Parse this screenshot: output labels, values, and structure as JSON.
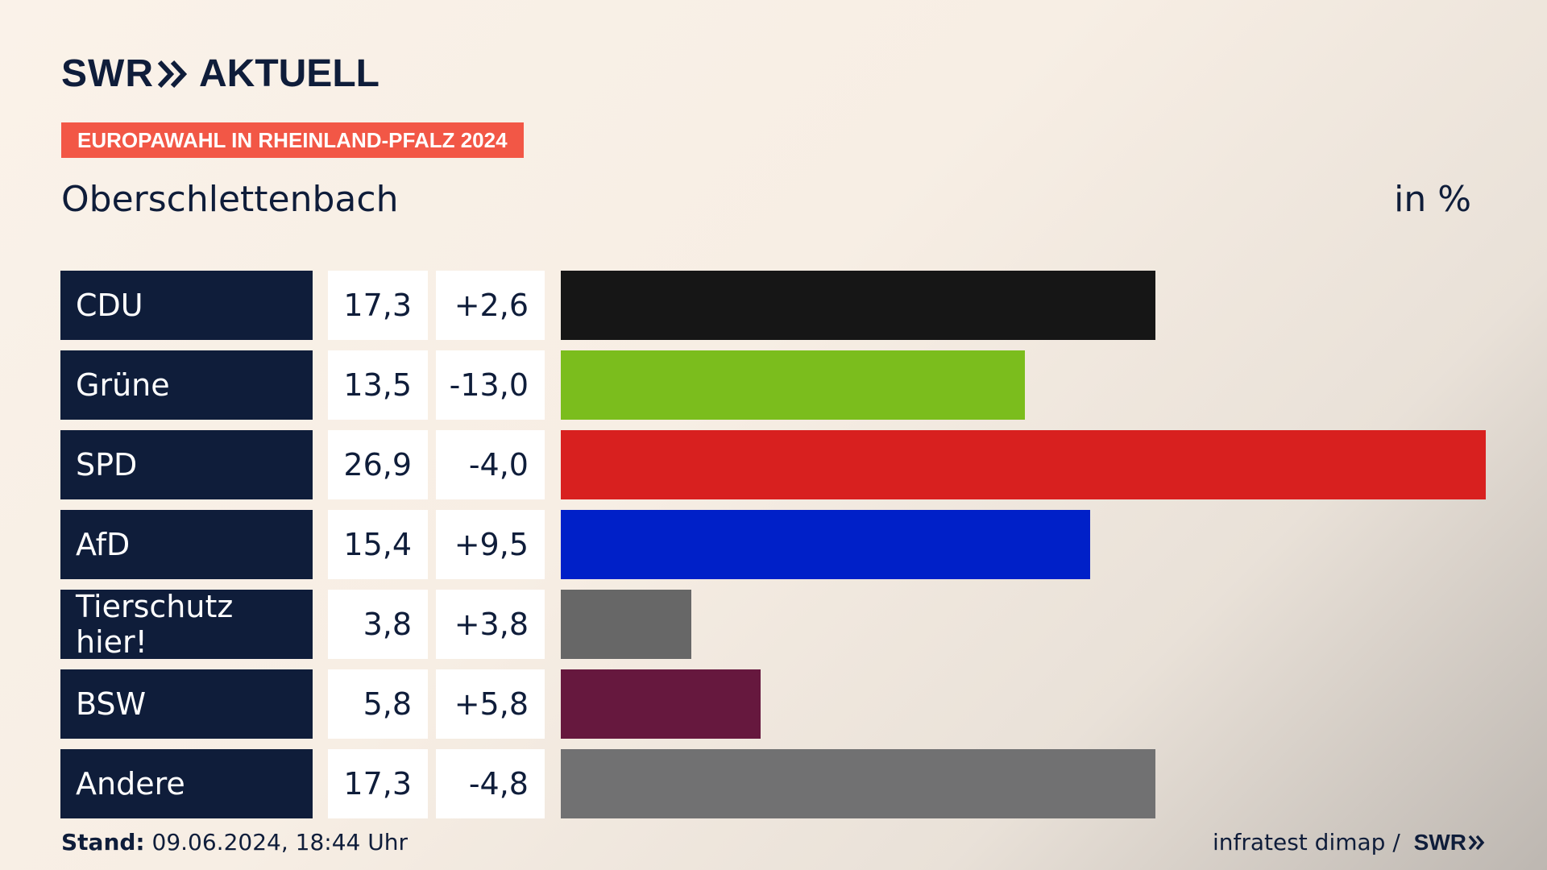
{
  "header": {
    "brand_primary": "SWR",
    "brand_secondary": "AKTUELL",
    "badge": "EUROPAWAHL IN RHEINLAND-PFALZ 2024",
    "place": "Oberschlettenbach",
    "unit": "in %"
  },
  "chart_data": {
    "type": "bar",
    "categories": [
      "CDU",
      "Grüne",
      "SPD",
      "AfD",
      "Tierschutz hier!",
      "BSW",
      "Andere"
    ],
    "values": [
      17.3,
      13.5,
      26.9,
      15.4,
      3.8,
      5.8,
      17.3
    ],
    "rows": [
      {
        "party": "CDU",
        "share": "17,3",
        "diff": "+2,6",
        "value": 17.3,
        "color": "#161616"
      },
      {
        "party": "Grüne",
        "share": "13,5",
        "diff": "-13,0",
        "value": 13.5,
        "color": "#7bbd1d"
      },
      {
        "party": "SPD",
        "share": "26,9",
        "diff": "-4,0",
        "value": 26.9,
        "color": "#d8201f"
      },
      {
        "party": "AfD",
        "share": "15,4",
        "diff": "+9,5",
        "value": 15.4,
        "color": "#0020c8"
      },
      {
        "party": "Tierschutz hier!",
        "share": "3,8",
        "diff": "+3,8",
        "value": 3.8,
        "color": "#676767"
      },
      {
        "party": "BSW",
        "share": "5,8",
        "diff": "+5,8",
        "value": 5.8,
        "color": "#66183e"
      },
      {
        "party": "Andere",
        "share": "17,3",
        "diff": "-4,8",
        "value": 17.3,
        "color": "#717172"
      }
    ],
    "xlim": [
      0,
      26.9
    ]
  },
  "footer": {
    "stand_label": "Stand:",
    "stand_value": " 09.06.2024, 18:44 Uhr",
    "source": "infratest dimap / ",
    "source_logo": "SWR"
  },
  "colors": {
    "navy": "#0f1d3a",
    "badge": "#f25746"
  }
}
